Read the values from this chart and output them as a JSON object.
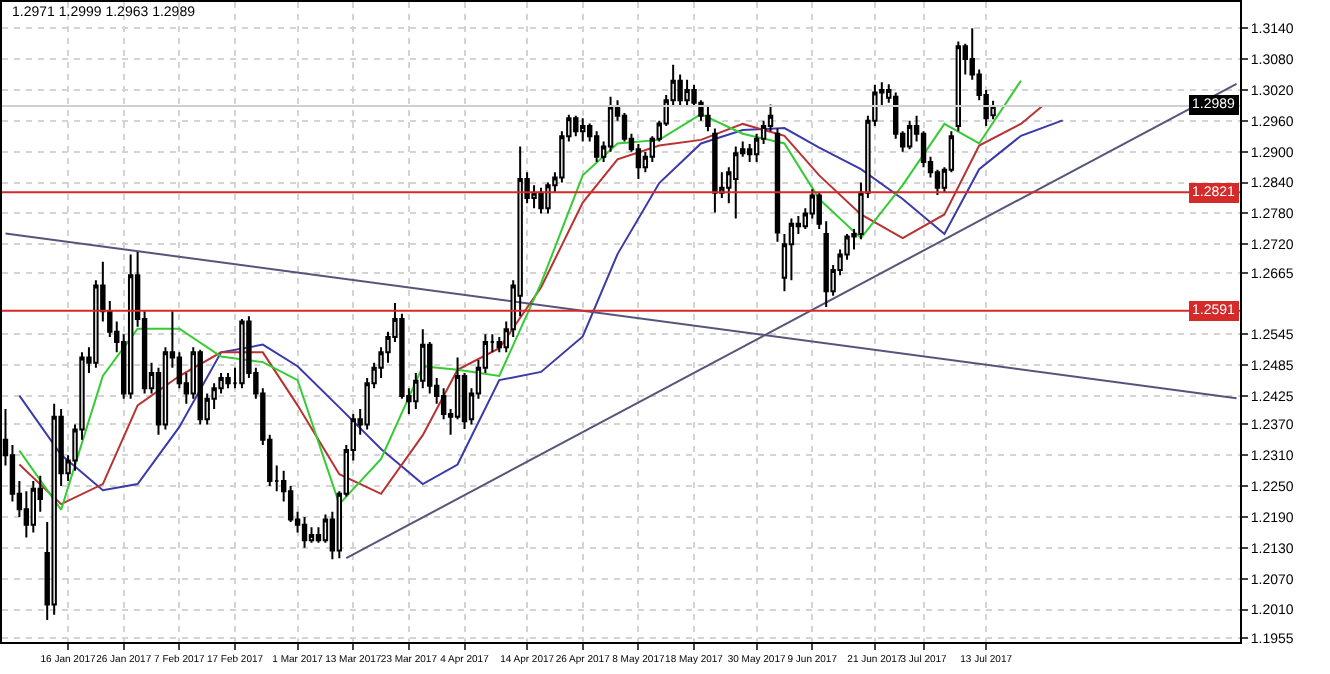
{
  "chart_data": {
    "type": "candlestick",
    "annotations": [
      "1.2971 1.2999 1.2963 1.2989"
    ],
    "categories": [
      null,
      null,
      null,
      null,
      null,
      null,
      null,
      null,
      null,
      "16 Jan 2017",
      null,
      null,
      null,
      null,
      null,
      null,
      null,
      "26 Jan 2017",
      null,
      null,
      null,
      null,
      null,
      null,
      null,
      "7 Feb 2017",
      null,
      null,
      null,
      null,
      null,
      null,
      null,
      "17 Feb 2017",
      null,
      null,
      null,
      null,
      null,
      null,
      null,
      null,
      "1 Mar 2017",
      null,
      null,
      null,
      null,
      null,
      null,
      null,
      "13 Mar 2017",
      null,
      null,
      null,
      null,
      null,
      null,
      null,
      "23 Mar 2017",
      null,
      null,
      null,
      null,
      null,
      null,
      null,
      "4 Apr 2017",
      null,
      null,
      null,
      null,
      null,
      null,
      null,
      null,
      "14 Apr 2017",
      null,
      null,
      null,
      null,
      null,
      null,
      null,
      "26 Apr 2017",
      null,
      null,
      null,
      null,
      null,
      null,
      null,
      "8 May 2017",
      null,
      null,
      null,
      null,
      null,
      null,
      null,
      "18 May 2017",
      null,
      null,
      null,
      null,
      null,
      null,
      null,
      null,
      "30 May 2017",
      null,
      null,
      null,
      null,
      null,
      null,
      null,
      "9 Jun 2017",
      null,
      null,
      null,
      null,
      null,
      null,
      null,
      null,
      "21 Jun 2017",
      null,
      null,
      null,
      null,
      null,
      null,
      "3 Jul 2017",
      null,
      null,
      null,
      null,
      null,
      null,
      null,
      null,
      "13 Jul 2017",
      null,
      null,
      null,
      null,
      null,
      null,
      null,
      null,
      null,
      null,
      null,
      null,
      null,
      null,
      null,
      null,
      null,
      null,
      null,
      null,
      null,
      null,
      null,
      null,
      null,
      null,
      null,
      null,
      null,
      null,
      null,
      null,
      null,
      null,
      null,
      null
    ],
    "ohlc": [
      [
        1.234,
        1.24,
        1.229,
        1.231
      ],
      [
        1.231,
        1.233,
        1.222,
        1.2235
      ],
      [
        1.2235,
        1.226,
        1.219,
        1.2205
      ],
      [
        1.2205,
        1.224,
        1.215,
        1.2175
      ],
      [
        1.2175,
        1.226,
        1.216,
        1.2245
      ],
      [
        1.2245,
        1.227,
        1.22,
        1.2225
      ],
      [
        1.212,
        1.218,
        1.199,
        1.202
      ],
      [
        1.202,
        1.241,
        1.2,
        1.2385
      ],
      [
        1.2385,
        1.24,
        1.225,
        1.2275
      ],
      [
        1.2275,
        1.231,
        1.226,
        1.23
      ],
      [
        1.23,
        1.237,
        1.228,
        1.236
      ],
      [
        1.236,
        1.251,
        1.234,
        1.25
      ],
      [
        1.25,
        1.252,
        1.247,
        1.249
      ],
      [
        1.249,
        1.265,
        1.248,
        1.264
      ],
      [
        1.264,
        1.2686,
        1.257,
        1.259
      ],
      [
        1.259,
        1.261,
        1.254,
        1.255
      ],
      [
        1.255,
        1.257,
        1.251,
        1.253
      ],
      [
        1.253,
        1.2545,
        1.242,
        1.243
      ],
      [
        1.243,
        1.27,
        1.242,
        1.266
      ],
      [
        1.266,
        1.2705,
        1.256,
        1.2575
      ],
      [
        1.2575,
        1.259,
        1.243,
        1.244
      ],
      [
        1.244,
        1.249,
        1.243,
        1.247
      ],
      [
        1.247,
        1.248,
        1.235,
        1.237
      ],
      [
        1.237,
        1.252,
        1.236,
        1.251
      ],
      [
        1.251,
        1.259,
        1.248,
        1.25
      ],
      [
        1.25,
        1.251,
        1.244,
        1.245
      ],
      [
        1.245,
        1.247,
        1.241,
        1.243
      ],
      [
        1.243,
        1.252,
        1.242,
        1.251
      ],
      [
        1.251,
        1.2515,
        1.237,
        1.238
      ],
      [
        1.238,
        1.243,
        1.237,
        1.242
      ],
      [
        1.242,
        1.245,
        1.24,
        1.244
      ],
      [
        1.244,
        1.247,
        1.243,
        1.246
      ],
      [
        1.246,
        1.247,
        1.244,
        1.245
      ],
      [
        1.245,
        1.248,
        1.244,
        1.245
      ],
      [
        1.245,
        1.2575,
        1.244,
        1.257
      ],
      [
        1.257,
        1.258,
        1.246,
        1.247
      ],
      [
        1.247,
        1.248,
        1.242,
        1.243
      ],
      [
        1.243,
        1.244,
        1.233,
        1.234
      ],
      [
        1.234,
        1.235,
        1.225,
        1.226
      ],
      [
        1.226,
        1.229,
        1.224,
        1.226
      ],
      [
        1.226,
        1.228,
        1.222,
        1.224
      ],
      [
        1.224,
        1.225,
        1.218,
        1.2185
      ],
      [
        1.2185,
        1.22,
        1.216,
        1.2175
      ],
      [
        1.2175,
        1.219,
        1.213,
        1.2145
      ],
      [
        1.2145,
        1.217,
        1.214,
        1.2155
      ],
      [
        1.2155,
        1.217,
        1.214,
        1.2145
      ],
      [
        1.2145,
        1.2195,
        1.214,
        1.2185
      ],
      [
        1.2185,
        1.22,
        1.2108,
        1.2125
      ],
      [
        1.2125,
        1.224,
        1.211,
        1.2235
      ],
      [
        1.2235,
        1.233,
        1.223,
        1.232
      ],
      [
        1.232,
        1.239,
        1.23,
        1.238
      ],
      [
        1.238,
        1.24,
        1.235,
        1.237
      ],
      [
        1.237,
        1.246,
        1.236,
        1.245
      ],
      [
        1.245,
        1.249,
        1.244,
        1.248
      ],
      [
        1.248,
        1.252,
        1.246,
        1.251
      ],
      [
        1.251,
        1.255,
        1.249,
        1.254
      ],
      [
        1.254,
        1.2606,
        1.253,
        1.2575
      ],
      [
        1.2575,
        1.2585,
        1.242,
        1.2425
      ],
      [
        1.2425,
        1.244,
        1.239,
        1.2415
      ],
      [
        1.2415,
        1.247,
        1.24,
        1.2455
      ],
      [
        1.2455,
        1.2555,
        1.244,
        1.2525
      ],
      [
        1.2525,
        1.253,
        1.243,
        1.2445
      ],
      [
        1.2445,
        1.246,
        1.241,
        1.2425
      ],
      [
        1.2425,
        1.244,
        1.238,
        1.239
      ],
      [
        1.239,
        1.24,
        1.235,
        1.2385
      ],
      [
        1.2385,
        1.25,
        1.238,
        1.2464
      ],
      [
        1.2464,
        1.247,
        1.2361,
        1.2376
      ],
      [
        1.238,
        1.244,
        1.237,
        1.243
      ],
      [
        1.243,
        1.2495,
        1.242,
        1.248
      ],
      [
        1.248,
        1.2545,
        1.247,
        1.253
      ],
      [
        1.253,
        1.2545,
        1.251,
        1.253
      ],
      [
        1.253,
        1.254,
        1.251,
        1.252
      ],
      [
        1.252,
        1.257,
        1.251,
        1.2555
      ],
      [
        1.2555,
        1.265,
        1.254,
        1.264
      ],
      [
        1.262,
        1.291,
        1.258,
        1.2847
      ],
      [
        1.2847,
        1.286,
        1.28,
        1.281
      ],
      [
        1.281,
        1.2835,
        1.279,
        1.282
      ],
      [
        1.282,
        1.283,
        1.278,
        1.279
      ],
      [
        1.279,
        1.284,
        1.278,
        1.2835
      ],
      [
        1.2835,
        1.286,
        1.282,
        1.285
      ],
      [
        1.285,
        1.294,
        1.284,
        1.293
      ],
      [
        1.293,
        1.2972,
        1.292,
        1.2965
      ],
      [
        1.2965,
        1.297,
        1.293,
        1.294
      ],
      [
        1.294,
        1.2965,
        1.292,
        1.295
      ],
      [
        1.295,
        1.2955,
        1.292,
        1.293
      ],
      [
        1.293,
        1.294,
        1.288,
        1.289
      ],
      [
        1.289,
        1.292,
        1.288,
        1.291
      ],
      [
        1.291,
        1.3007,
        1.29,
        1.2988
      ],
      [
        1.2988,
        1.3,
        1.296,
        1.297
      ],
      [
        1.297,
        1.2975,
        1.292,
        1.2925
      ],
      [
        1.2925,
        1.2935,
        1.29,
        1.2905
      ],
      [
        1.2905,
        1.2915,
        1.2847,
        1.287
      ],
      [
        1.287,
        1.29,
        1.286,
        1.289
      ],
      [
        1.289,
        1.293,
        1.288,
        1.2925
      ],
      [
        1.2925,
        1.296,
        1.292,
        1.2955
      ],
      [
        1.2955,
        1.301,
        1.295,
        1.3
      ],
      [
        1.3,
        1.3069,
        1.299,
        1.3038
      ],
      [
        1.3038,
        1.305,
        1.299,
        1.3
      ],
      [
        1.3,
        1.304,
        1.299,
        1.302
      ],
      [
        1.302,
        1.303,
        1.299,
        1.2995
      ],
      [
        1.2995,
        1.3,
        1.296,
        1.297
      ],
      [
        1.297,
        1.299,
        1.294,
        1.295
      ],
      [
        1.2935,
        1.2945,
        1.2782,
        1.282
      ],
      [
        1.282,
        1.286,
        1.281,
        1.283
      ],
      [
        1.283,
        1.287,
        1.28,
        1.286
      ],
      [
        1.2847,
        1.291,
        1.277,
        1.2897
      ],
      [
        1.2897,
        1.292,
        1.289,
        1.2905
      ],
      [
        1.2905,
        1.2915,
        1.288,
        1.2895
      ],
      [
        1.2895,
        1.2935,
        1.288,
        1.2925
      ],
      [
        1.2925,
        1.296,
        1.2915,
        1.295
      ],
      [
        1.295,
        1.2992,
        1.294,
        1.297
      ],
      [
        1.2935,
        1.2945,
        1.2725,
        1.2743
      ],
      [
        1.2655,
        1.274,
        1.2629,
        1.272
      ],
      [
        1.272,
        1.277,
        1.265,
        1.276
      ],
      [
        1.276,
        1.2775,
        1.274,
        1.2755
      ],
      [
        1.2755,
        1.279,
        1.275,
        1.278
      ],
      [
        1.278,
        1.2827,
        1.277,
        1.2815
      ],
      [
        1.2815,
        1.282,
        1.275,
        1.276
      ],
      [
        1.274,
        1.2765,
        1.2598,
        1.2629
      ],
      [
        1.2629,
        1.268,
        1.262,
        1.267
      ],
      [
        1.267,
        1.271,
        1.266,
        1.27
      ],
      [
        1.27,
        1.274,
        1.269,
        1.2735
      ],
      [
        1.2735,
        1.275,
        1.271,
        1.274
      ],
      [
        1.274,
        1.284,
        1.273,
        1.282
      ],
      [
        1.282,
        1.297,
        1.281,
        1.296
      ],
      [
        1.296,
        1.303,
        1.295,
        1.3015
      ],
      [
        1.3015,
        1.3035,
        1.299,
        1.302
      ],
      [
        1.3005,
        1.3031,
        1.2995,
        1.302
      ],
      [
        1.3007,
        1.3015,
        1.2925,
        1.2935
      ],
      [
        1.2935,
        1.294,
        1.29,
        1.291
      ],
      [
        1.291,
        1.296,
        1.2905,
        1.295
      ],
      [
        1.295,
        1.297,
        1.292,
        1.2935
      ],
      [
        1.2935,
        1.294,
        1.287,
        1.288
      ],
      [
        1.288,
        1.289,
        1.285,
        1.286
      ],
      [
        1.286,
        1.2865,
        1.2816,
        1.283
      ],
      [
        1.283,
        1.287,
        1.282,
        1.2865
      ],
      [
        1.2865,
        1.294,
        1.286,
        1.293
      ],
      [
        1.295,
        1.3114,
        1.294,
        1.3105
      ],
      [
        1.3105,
        1.311,
        1.305,
        1.308
      ],
      [
        1.308,
        1.314,
        1.304,
        1.305
      ],
      [
        1.305,
        1.306,
        1.3,
        1.301
      ],
      [
        1.301,
        1.302,
        1.295,
        1.2965
      ],
      [
        1.2971,
        1.2999,
        1.2963,
        1.2989
      ],
      null,
      null,
      null,
      null,
      null,
      null,
      null,
      null,
      null,
      null,
      null,
      null,
      null,
      null,
      null,
      null,
      null,
      null,
      null,
      null,
      null,
      null,
      null,
      null,
      null,
      null,
      null,
      null,
      null,
      null,
      null,
      null,
      null,
      null,
      null
    ],
    "series": [
      {
        "type": "line",
        "color": "#3a3aa8",
        "values": [
          null,
          null,
          1.2426,
          null,
          null,
          null,
          null,
          null,
          1.2311,
          null,
          null,
          null,
          null,
          null,
          1.2242,
          null,
          null,
          null,
          null,
          1.2254,
          null,
          null,
          null,
          null,
          null,
          1.2365,
          null,
          null,
          null,
          null,
          null,
          1.251,
          null,
          null,
          null,
          null,
          null,
          1.2525,
          null,
          null,
          null,
          null,
          1.2483,
          null,
          null,
          null,
          null,
          null,
          1.2403,
          null,
          null,
          null,
          null,
          null,
          1.2322,
          null,
          null,
          null,
          null,
          null,
          1.2254,
          null,
          null,
          null,
          null,
          1.2292,
          null,
          null,
          null,
          null,
          null,
          1.2456,
          null,
          null,
          null,
          null,
          null,
          1.2472,
          null,
          null,
          null,
          null,
          null,
          1.2541,
          null,
          null,
          null,
          null,
          1.2701,
          null,
          null,
          null,
          null,
          null,
          1.2839,
          null,
          null,
          null,
          null,
          null,
          1.2916,
          null,
          null,
          null,
          null,
          null,
          1.2942,
          null,
          null,
          null,
          null,
          null,
          1.2946,
          null,
          null,
          null,
          null,
          1.2908,
          null,
          null,
          null,
          null,
          null,
          1.2866,
          null,
          null,
          null,
          null,
          null,
          1.2808,
          null,
          null,
          null,
          null,
          null,
          1.274,
          null,
          null,
          null,
          null,
          1.2866,
          null,
          null,
          null,
          null,
          null,
          1.2931,
          null,
          null,
          null,
          null,
          null,
          1.2961,
          null,
          null,
          null,
          null,
          null,
          null,
          null,
          null,
          null,
          null,
          null,
          null,
          null,
          null,
          null,
          null,
          null,
          null,
          null,
          null,
          null,
          null,
          null,
          null,
          null
        ]
      },
      {
        "type": "line",
        "color": "#b83232",
        "values": [
          null,
          null,
          1.2292,
          null,
          null,
          null,
          null,
          null,
          1.2215,
          null,
          null,
          null,
          null,
          null,
          1.2254,
          null,
          null,
          null,
          null,
          1.2407,
          null,
          null,
          null,
          null,
          null,
          1.2464,
          null,
          null,
          null,
          null,
          null,
          1.251,
          null,
          null,
          null,
          null,
          null,
          1.251,
          null,
          null,
          null,
          null,
          1.2407,
          null,
          null,
          null,
          null,
          null,
          1.2273,
          null,
          null,
          null,
          null,
          null,
          1.2235,
          null,
          null,
          null,
          null,
          null,
          1.2349,
          null,
          null,
          null,
          null,
          1.2476,
          null,
          null,
          null,
          null,
          null,
          1.2518,
          null,
          null,
          null,
          null,
          null,
          1.2636,
          null,
          null,
          null,
          null,
          null,
          1.2801,
          null,
          null,
          null,
          null,
          1.2885,
          null,
          null,
          null,
          null,
          null,
          1.2912,
          null,
          null,
          null,
          null,
          null,
          1.2923,
          null,
          null,
          null,
          null,
          null,
          1.2954,
          null,
          null,
          null,
          null,
          null,
          1.2931,
          null,
          null,
          null,
          null,
          1.2854,
          null,
          null,
          null,
          null,
          null,
          1.2778,
          null,
          null,
          null,
          null,
          null,
          1.2732,
          null,
          null,
          null,
          null,
          null,
          1.2778,
          null,
          null,
          null,
          null,
          1.2912,
          null,
          null,
          null,
          null,
          null,
          1.2954,
          null,
          null,
          1.2988,
          null,
          null,
          null,
          null,
          null,
          null,
          null,
          null,
          null,
          null,
          null,
          null,
          null,
          null,
          null,
          null,
          null,
          null,
          null,
          null,
          null,
          null,
          null,
          null,
          null,
          null,
          null,
          null
        ]
      },
      {
        "type": "line",
        "color": "#33cc33",
        "values": [
          null,
          null,
          1.2319,
          null,
          null,
          null,
          null,
          null,
          1.2204,
          null,
          null,
          null,
          null,
          null,
          1.2464,
          null,
          null,
          null,
          null,
          1.2556,
          null,
          null,
          null,
          null,
          null,
          1.2556,
          null,
          null,
          null,
          null,
          null,
          1.2502,
          null,
          null,
          null,
          null,
          null,
          1.2491,
          null,
          null,
          null,
          null,
          1.2456,
          null,
          null,
          null,
          null,
          null,
          1.2215,
          null,
          null,
          null,
          null,
          null,
          1.2303,
          null,
          null,
          null,
          null,
          null,
          1.2483,
          null,
          null,
          null,
          null,
          1.2476,
          null,
          null,
          null,
          null,
          null,
          1.2464,
          null,
          null,
          null,
          null,
          null,
          1.2644,
          null,
          null,
          null,
          null,
          null,
          1.2854,
          null,
          null,
          null,
          null,
          1.2916,
          null,
          null,
          null,
          null,
          null,
          1.2923,
          null,
          null,
          null,
          null,
          null,
          1.2973,
          null,
          null,
          null,
          null,
          null,
          1.2935,
          null,
          null,
          null,
          null,
          null,
          1.2916,
          null,
          null,
          null,
          null,
          1.2808,
          null,
          null,
          null,
          null,
          null,
          1.2732,
          null,
          null,
          null,
          null,
          null,
          1.2835,
          null,
          null,
          null,
          null,
          null,
          1.2954,
          null,
          null,
          null,
          null,
          1.2916,
          null,
          null,
          null,
          null,
          null,
          1.3038,
          null,
          null,
          null,
          null,
          null,
          null,
          null,
          null,
          null,
          null,
          null,
          null,
          null,
          null,
          null,
          null,
          null,
          null,
          null,
          null,
          null,
          null,
          null,
          null,
          null,
          null,
          null,
          null,
          null,
          null,
          null
        ]
      },
      {
        "type": "line",
        "color": "#55557a",
        "values": [
          1.2741,
          null,
          null,
          null,
          null,
          null,
          null,
          null,
          null,
          null,
          null,
          null,
          null,
          null,
          null,
          null,
          null,
          null,
          null,
          null,
          null,
          null,
          null,
          null,
          null,
          null,
          null,
          null,
          null,
          null,
          null,
          null,
          null,
          null,
          null,
          null,
          null,
          null,
          null,
          null,
          null,
          null,
          null,
          null,
          null,
          null,
          null,
          null,
          null,
          null,
          null,
          null,
          null,
          null,
          null,
          null,
          null,
          null,
          null,
          null,
          null,
          null,
          null,
          null,
          null,
          null,
          null,
          null,
          null,
          null,
          null,
          null,
          null,
          null,
          null,
          null,
          null,
          null,
          null,
          null,
          null,
          null,
          null,
          null,
          null,
          null,
          null,
          null,
          null,
          null,
          null,
          null,
          null,
          null,
          null,
          null,
          null,
          null,
          null,
          null,
          null,
          null,
          null,
          null,
          null,
          null,
          null,
          null,
          null,
          null,
          null,
          null,
          null,
          null,
          null,
          null,
          null,
          null,
          null,
          null,
          null,
          null,
          null,
          null,
          null,
          null,
          null,
          null,
          null,
          null,
          null,
          null,
          null,
          null,
          null,
          null,
          null,
          null,
          null,
          null,
          null,
          null,
          null,
          null,
          null,
          null,
          null,
          null,
          null,
          null,
          null,
          null,
          null,
          null,
          null,
          null,
          null,
          null,
          null,
          null,
          null,
          null,
          null,
          null,
          null,
          null,
          null,
          null,
          null,
          null,
          null,
          null,
          null,
          null,
          null,
          null,
          null,
          1.2421
        ]
      },
      {
        "type": "line",
        "color": "#55557a",
        "values": [
          null,
          null,
          null,
          null,
          null,
          null,
          null,
          null,
          null,
          null,
          null,
          null,
          null,
          null,
          null,
          null,
          null,
          null,
          null,
          null,
          null,
          null,
          null,
          null,
          null,
          null,
          null,
          null,
          null,
          null,
          null,
          null,
          null,
          null,
          null,
          null,
          null,
          null,
          null,
          null,
          null,
          null,
          null,
          null,
          null,
          null,
          null,
          null,
          null,
          1.211,
          null,
          null,
          null,
          null,
          null,
          null,
          null,
          null,
          null,
          null,
          null,
          null,
          null,
          null,
          null,
          null,
          null,
          null,
          null,
          null,
          null,
          null,
          null,
          null,
          null,
          null,
          null,
          null,
          null,
          null,
          null,
          null,
          null,
          null,
          null,
          null,
          null,
          null,
          null,
          null,
          null,
          null,
          null,
          null,
          null,
          null,
          null,
          null,
          null,
          null,
          null,
          null,
          null,
          null,
          null,
          null,
          null,
          null,
          null,
          null,
          null,
          null,
          null,
          null,
          null,
          null,
          null,
          null,
          null,
          null,
          null,
          null,
          null,
          null,
          null,
          null,
          null,
          null,
          null,
          null,
          null,
          null,
          null,
          null,
          null,
          null,
          null,
          null,
          null,
          null,
          null,
          null,
          null,
          null,
          null,
          null,
          null,
          null,
          null,
          null,
          null,
          null,
          null,
          null,
          null,
          null,
          null,
          null,
          null,
          null,
          null,
          null,
          null,
          null,
          null,
          null,
          null,
          null,
          null,
          null,
          null,
          null,
          null,
          null,
          null,
          null,
          null,
          1.3032
        ]
      }
    ],
    "ref_lines": [
      {
        "axis": "y",
        "value": 1.2821,
        "label": "1.2821",
        "color": "#d42a2a"
      },
      {
        "axis": "y",
        "value": 1.2591,
        "label": "1.2591",
        "color": "#d42a2a"
      },
      {
        "axis": "y",
        "value": 1.2989,
        "label": "1.2989",
        "color": "#d0d0d0"
      }
    ],
    "ylim": [
      1.1947,
      1.3191
    ],
    "yticks": [
      1.1955,
      {
        "value": 1.201,
        "label": "1.2010"
      },
      {
        "value": 1.207,
        "label": "1.2070"
      },
      {
        "value": 1.213,
        "label": "1.2130"
      },
      {
        "value": 1.219,
        "label": "1.2190"
      },
      {
        "value": 1.225,
        "label": "1.2250"
      },
      {
        "value": 1.231,
        "label": "1.2310"
      },
      {
        "value": 1.237,
        "label": "1.2370"
      },
      1.2425,
      1.2485,
      1.2545,
      1.2665,
      {
        "value": 1.272,
        "label": "1.2720"
      },
      {
        "value": 1.278,
        "label": "1.2780"
      },
      {
        "value": 1.284,
        "label": "1.2840"
      },
      {
        "value": 1.29,
        "label": "1.2900"
      },
      {
        "value": 1.296,
        "label": "1.2960"
      },
      {
        "value": 1.302,
        "label": "1.3020"
      },
      {
        "value": 1.308,
        "label": "1.3080"
      },
      {
        "value": 1.314,
        "label": "1.3140"
      }
    ],
    "grid": true
  }
}
